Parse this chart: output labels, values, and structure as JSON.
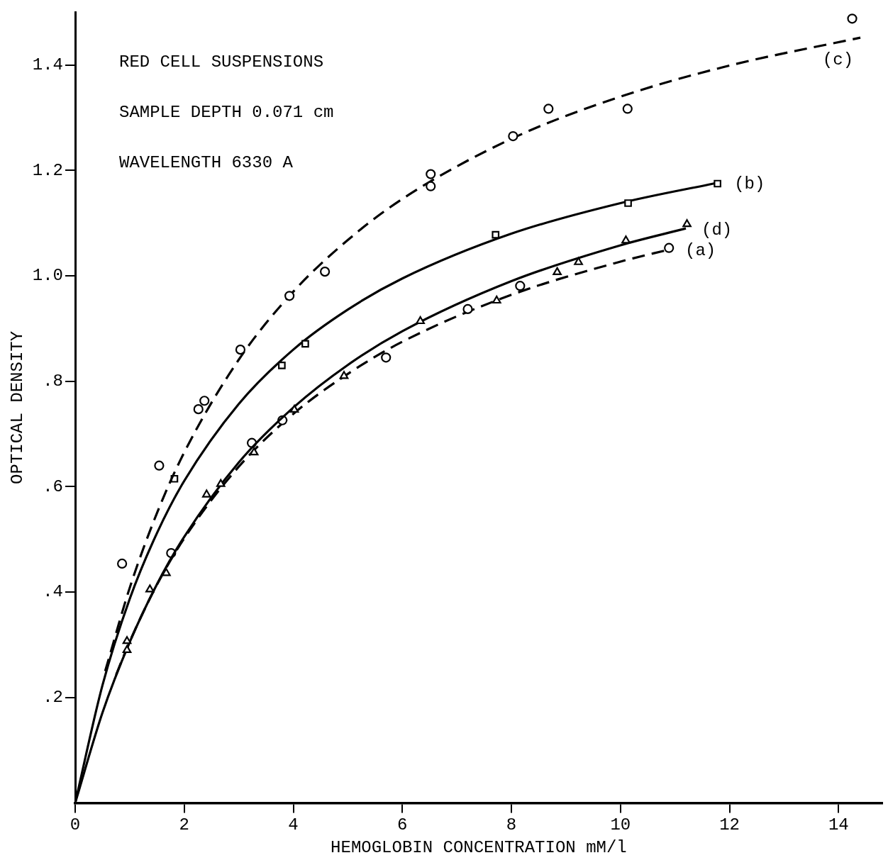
{
  "chart_data": {
    "type": "scatter",
    "xlabel": "HEMOGLOBIN CONCENTRATION mM/l",
    "ylabel": "OPTICAL DENSITY",
    "annotations": [
      "RED CELL SUSPENSIONS",
      "SAMPLE DEPTH 0.071 cm",
      "WAVELENGTH 6330 A"
    ],
    "xlim": [
      0,
      14.8
    ],
    "ylim": [
      0,
      1.5
    ],
    "xticks": [
      0,
      2,
      4,
      6,
      8,
      10,
      12,
      14
    ],
    "yticks": [
      {
        "value": 0.2,
        "label": ".2"
      },
      {
        "value": 0.4,
        "label": ".4"
      },
      {
        "value": 0.6,
        "label": ".6"
      },
      {
        "value": 0.8,
        "label": ".8"
      },
      {
        "value": 1.0,
        "label": "1.0"
      },
      {
        "value": 1.2,
        "label": "1.2"
      },
      {
        "value": 1.4,
        "label": "1.4"
      }
    ],
    "grid": false,
    "legend": false,
    "series": [
      {
        "type": "scatter",
        "marker": "circle",
        "color": "#000000",
        "x": [
          0.86,
          1.54,
          2.26,
          2.37,
          3.03,
          3.93,
          4.58,
          6.52,
          6.52,
          8.03,
          8.68,
          10.13,
          14.25
        ],
        "values": [
          0.454,
          0.64,
          0.747,
          0.763,
          0.86,
          0.962,
          1.008,
          1.193,
          1.17,
          1.265,
          1.317,
          1.317,
          1.488
        ]
      },
      {
        "type": "line",
        "name": "(c)",
        "marker": "none",
        "line_style": "dashed",
        "color": "#000000",
        "x": [
          0.55,
          1,
          1.5,
          2,
          3,
          4,
          5,
          6,
          8,
          10,
          12,
          14.4
        ],
        "values": [
          0.25,
          0.408,
          0.55,
          0.665,
          0.841,
          0.97,
          1.068,
          1.146,
          1.26,
          1.34,
          1.399,
          1.452
        ]
      },
      {
        "type": "scatter",
        "marker": "square",
        "color": "#000000",
        "x": [
          1.82,
          3.79,
          4.22,
          7.71,
          10.14,
          11.78
        ],
        "values": [
          0.615,
          0.83,
          0.871,
          1.078,
          1.138,
          1.175
        ]
      },
      {
        "type": "line",
        "name": "(b)",
        "marker": "none",
        "line_style": "solid",
        "color": "#000000",
        "x": [
          0,
          0.5,
          1,
          1.5,
          2,
          3,
          4,
          5,
          6,
          8,
          10,
          11.8
        ],
        "values": [
          0,
          0.223,
          0.387,
          0.512,
          0.611,
          0.757,
          0.86,
          0.936,
          0.995,
          1.08,
          1.138,
          1.177
        ]
      },
      {
        "type": "scatter",
        "marker": "triangle",
        "color": "#000000",
        "x": [
          0.95,
          0.95,
          1.37,
          1.67,
          2.41,
          2.67,
          3.28,
          4.02,
          4.93,
          6.33,
          7.73,
          8.84,
          9.23,
          10.1,
          11.22
        ],
        "values": [
          0.307,
          0.29,
          0.405,
          0.436,
          0.585,
          0.605,
          0.665,
          0.746,
          0.81,
          0.914,
          0.953,
          1.007,
          1.026,
          1.067,
          1.098
        ]
      },
      {
        "type": "line",
        "name": "(d)",
        "marker": "none",
        "line_style": "solid",
        "color": "#000000",
        "x": [
          0,
          0.5,
          1,
          1.5,
          2,
          3,
          4,
          5,
          6,
          8,
          10,
          11.2
        ],
        "values": [
          0,
          0.171,
          0.305,
          0.415,
          0.505,
          0.646,
          0.75,
          0.831,
          0.895,
          0.99,
          1.058,
          1.09
        ]
      },
      {
        "type": "scatter",
        "marker": "circle",
        "color": "#000000",
        "x": [
          1.76,
          3.24,
          3.8,
          5.7,
          7.2,
          8.16,
          10.89
        ],
        "values": [
          0.474,
          0.683,
          0.726,
          0.845,
          0.937,
          0.981,
          1.053
        ]
      },
      {
        "type": "line",
        "name": "(a)",
        "marker": "none",
        "line_style": "dashed",
        "color": "#000000",
        "x": [
          0.75,
          1,
          1.5,
          2,
          3,
          4,
          5,
          6,
          8,
          10,
          10.9
        ],
        "values": [
          0.243,
          0.306,
          0.414,
          0.502,
          0.638,
          0.738,
          0.814,
          0.875,
          0.964,
          1.027,
          1.05
        ]
      }
    ]
  }
}
